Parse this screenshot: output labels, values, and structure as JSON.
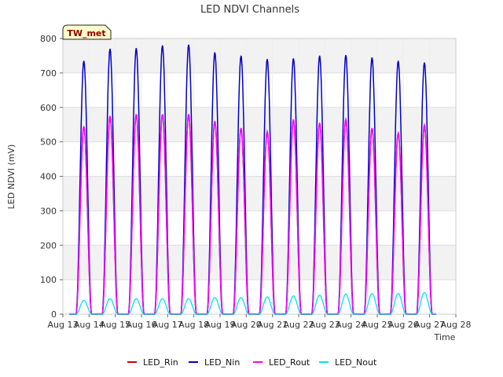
{
  "chart_data": {
    "type": "line",
    "title": "LED NDVI Channels",
    "xlabel": "Time",
    "ylabel": "LED NDVI (mV)",
    "badge": "TW_met",
    "ylim": [
      0,
      800
    ],
    "yticks": [
      0,
      100,
      200,
      300,
      400,
      500,
      600,
      700,
      800
    ],
    "xlim": [
      13,
      28
    ],
    "xticks": [
      13,
      14,
      15,
      16,
      17,
      18,
      19,
      20,
      21,
      22,
      23,
      24,
      25,
      26,
      27,
      28
    ],
    "xtick_labels": [
      "Aug 13",
      "Aug 14",
      "Aug 15",
      "Aug 16",
      "Aug 17",
      "Aug 18",
      "Aug 19",
      "Aug 20",
      "Aug 21",
      "Aug 22",
      "Aug 23",
      "Aug 24",
      "Aug 25",
      "Aug 26",
      "Aug 27",
      "Aug 28"
    ],
    "grid": true,
    "legend_position": "bottom",
    "peak_days": [
      13.8,
      14.8,
      15.8,
      16.8,
      17.8,
      18.8,
      19.8,
      20.8,
      21.8,
      22.8,
      23.8,
      24.8,
      25.8,
      26.8
    ],
    "series": [
      {
        "name": "LED_Rin",
        "color": "#cc0000",
        "peaks": [
          545,
          575,
          580,
          580,
          580,
          560,
          540,
          530,
          565,
          555,
          565,
          540,
          525,
          548
        ]
      },
      {
        "name": "LED_Nin",
        "color": "#0000cc",
        "peaks": [
          735,
          770,
          772,
          780,
          782,
          760,
          750,
          740,
          742,
          750,
          752,
          745,
          735,
          730
        ]
      },
      {
        "name": "LED_Rout",
        "color": "#ff00ff",
        "peaks": [
          545,
          575,
          580,
          580,
          580,
          560,
          540,
          530,
          565,
          555,
          565,
          540,
          525,
          548
        ]
      },
      {
        "name": "LED_Nout",
        "color": "#00e5ee",
        "peaks": [
          40,
          45,
          45,
          45,
          45,
          48,
          48,
          50,
          53,
          55,
          58,
          60,
          60,
          63
        ]
      }
    ]
  }
}
